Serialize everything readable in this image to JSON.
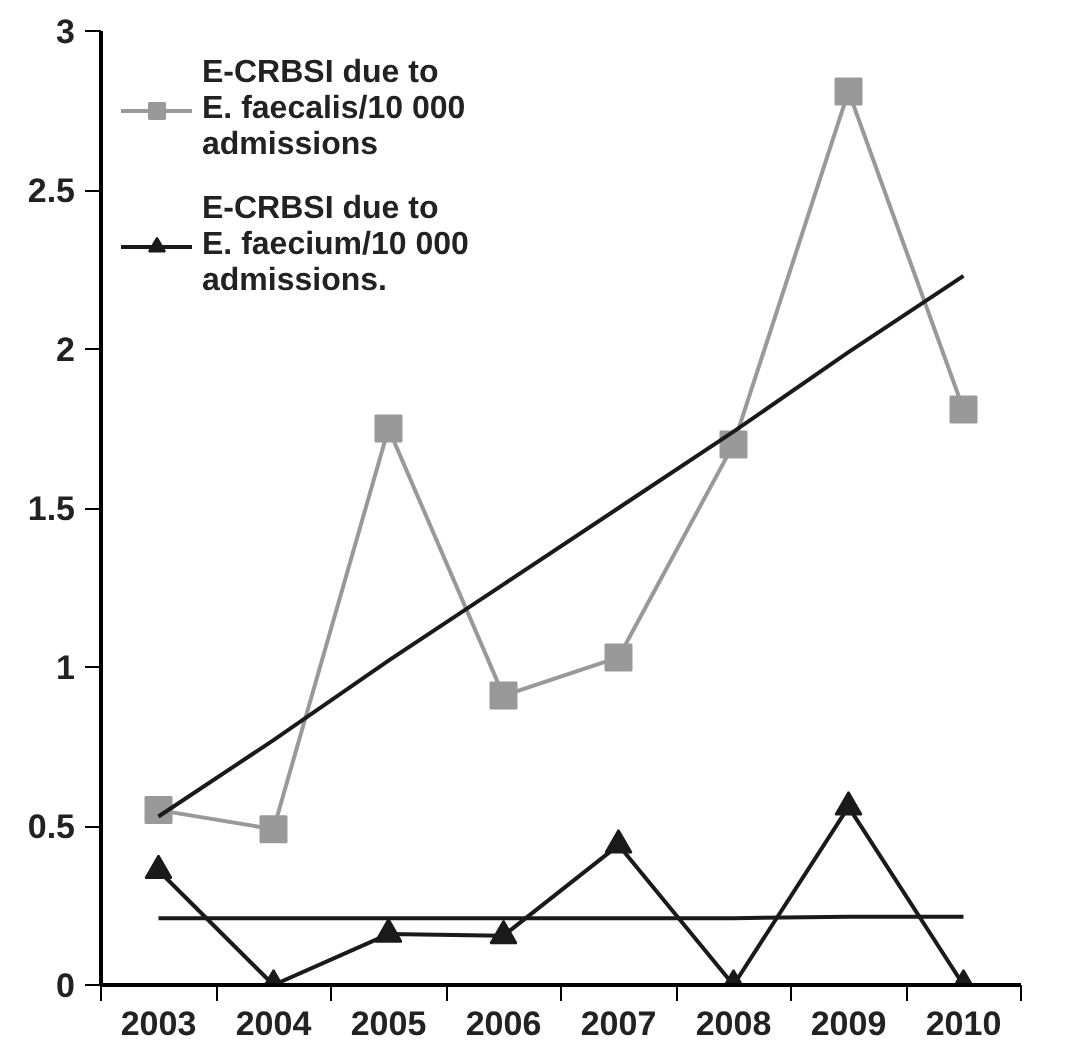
{
  "chart_data": {
    "type": "line",
    "categories": [
      "2003",
      "2004",
      "2005",
      "2006",
      "2007",
      "2008",
      "2009",
      "2010"
    ],
    "series": [
      {
        "name": "E-CRBSI due to\nE. faecalis/10 000\nadmissions",
        "color": "#999999",
        "marker": "square",
        "values": [
          0.55,
          0.49,
          1.75,
          0.91,
          1.03,
          1.7,
          2.81,
          1.81
        ]
      },
      {
        "name": "E-CRBSI due to\nE. faecium/10 000\nadmissions.",
        "color": "#1a1a1a",
        "marker": "triangle",
        "values": [
          0.36,
          0,
          0.16,
          0.155,
          0.44,
          0,
          0.56,
          0
        ]
      },
      {
        "type": "line",
        "color": "#1a1a1a",
        "marker": "none",
        "values": [
          0.53,
          0.77,
          1.02,
          1.26,
          1.5,
          1.74,
          1.99,
          2.23
        ]
      },
      {
        "type": "line",
        "color": "#1a1a1a",
        "marker": "none",
        "values": [
          0.21,
          0.21,
          0.21,
          0.21,
          0.21,
          0.21,
          0.215,
          0.215
        ]
      }
    ],
    "ylim": [
      0,
      3
    ],
    "yticks": [
      0,
      0.5,
      1,
      1.5,
      2,
      2.5,
      3
    ],
    "grid": false,
    "legend": "top left",
    "line_style": "solid"
  }
}
